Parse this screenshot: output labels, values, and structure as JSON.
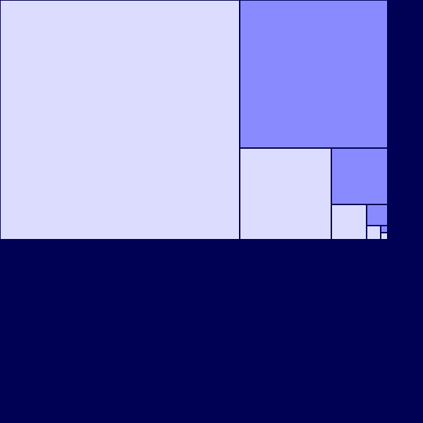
{
  "colors": {
    "background": "#000055",
    "light": "#dcdcff",
    "medium": "#8a8aff",
    "stroke": "#000055"
  },
  "diagram": {
    "kind": "golden-ratio-square-subdivision",
    "square_count": 9,
    "fill_pattern": [
      "light",
      "medium",
      "light",
      "medium",
      "light",
      "medium",
      "light",
      "medium",
      "light"
    ]
  }
}
